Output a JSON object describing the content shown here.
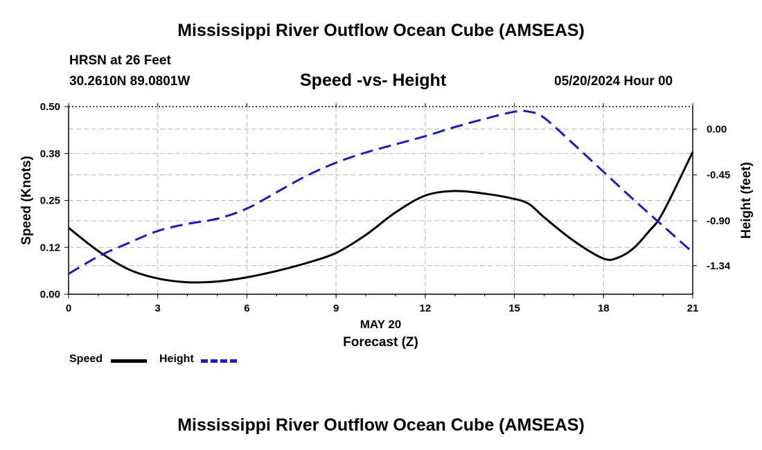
{
  "page": {
    "title_top": "Mississippi River Outflow Ocean Cube (AMSEAS)",
    "title_bottom": "Mississippi River Outflow Ocean Cube (AMSEAS)",
    "station": "HRSN at 26 Feet",
    "coords": "30.2610N  89.0801W",
    "datetime": "05/20/2024 Hour 00"
  },
  "colors": {
    "speed": "#000000",
    "height": "#1a1acc",
    "grid": "#b3b3b3"
  },
  "chart_data": {
    "type": "line",
    "title": "Speed -vs- Height",
    "xlabel": "Forecast (Z)",
    "xdate_label": "MAY 20",
    "ylabel": "Speed (Knots)",
    "y2label": "Height (feet)",
    "xlim": [
      0,
      21
    ],
    "ylim": [
      0,
      0.5
    ],
    "y2lim": [
      -1.62,
      0.22
    ],
    "xticks": [
      0,
      3,
      6,
      9,
      12,
      15,
      18,
      21
    ],
    "xtick_labels": [
      "0",
      "3",
      "6",
      "9",
      "12",
      "15",
      "18",
      "21"
    ],
    "yticks": [
      0,
      0.125,
      0.25,
      0.375,
      0.5
    ],
    "ytick_labels": [
      "0.00",
      "0.12",
      "0.25",
      "0.38",
      "0.50"
    ],
    "y2ticks": [
      0.0,
      -0.45,
      -0.9,
      -1.34
    ],
    "y2tick_labels": [
      "0.00",
      "-0.45",
      "-0.90",
      "-1.34"
    ],
    "grid": true,
    "legend": "bottom-left",
    "series": [
      {
        "name": "Speed",
        "axis": "left",
        "style": "solid",
        "x": [
          0,
          1,
          2,
          3,
          4,
          5,
          6,
          7,
          8,
          9,
          10,
          11,
          12,
          13,
          14,
          15,
          15.5,
          16,
          17,
          18,
          18.5,
          19,
          19.5,
          20,
          21
        ],
        "y": [
          0.177,
          0.115,
          0.067,
          0.042,
          0.032,
          0.034,
          0.045,
          0.062,
          0.083,
          0.11,
          0.158,
          0.218,
          0.263,
          0.275,
          0.268,
          0.254,
          0.24,
          0.205,
          0.142,
          0.095,
          0.098,
          0.122,
          0.165,
          0.218,
          0.379
        ]
      },
      {
        "name": "Height",
        "axis": "right",
        "style": "dashed",
        "x": [
          0,
          1,
          2,
          3,
          4,
          5,
          6,
          7,
          8,
          9,
          10,
          11,
          12,
          13,
          14,
          15,
          15.5,
          16,
          17,
          18,
          19,
          20,
          21
        ],
        "y": [
          -1.42,
          -1.25,
          -1.12,
          -1.0,
          -0.93,
          -0.88,
          -0.78,
          -0.62,
          -0.46,
          -0.33,
          -0.23,
          -0.15,
          -0.07,
          0.02,
          0.1,
          0.17,
          0.17,
          0.11,
          -0.15,
          -0.42,
          -0.69,
          -0.95,
          -1.21
        ]
      }
    ]
  }
}
